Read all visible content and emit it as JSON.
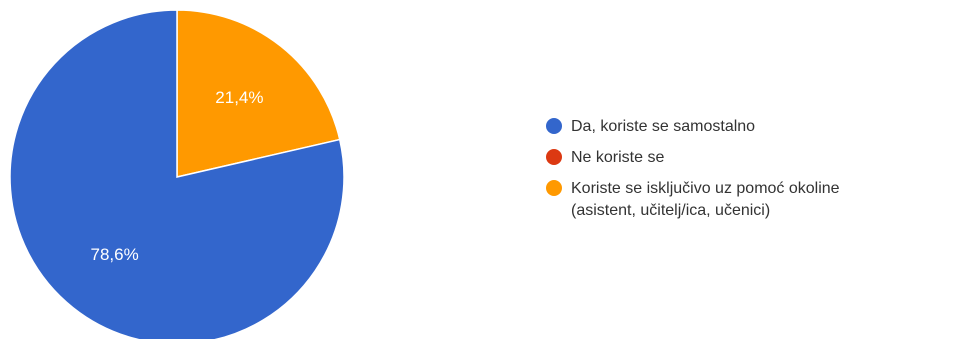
{
  "chart_data": {
    "type": "pie",
    "legend_position": "right",
    "slices": [
      {
        "label": "Da, koriste se samostalno",
        "value": 78.6,
        "value_label": "78,6%",
        "color": "#3366cc"
      },
      {
        "label": "Ne koriste se",
        "value": 0,
        "value_label": "",
        "color": "#dc3912"
      },
      {
        "label": "Koriste se isključivo uz pomoć okoline\n(asistent, učitelj/ica, učenici)",
        "value": 21.4,
        "value_label": "21,4%",
        "color": "#ff9900"
      }
    ]
  }
}
